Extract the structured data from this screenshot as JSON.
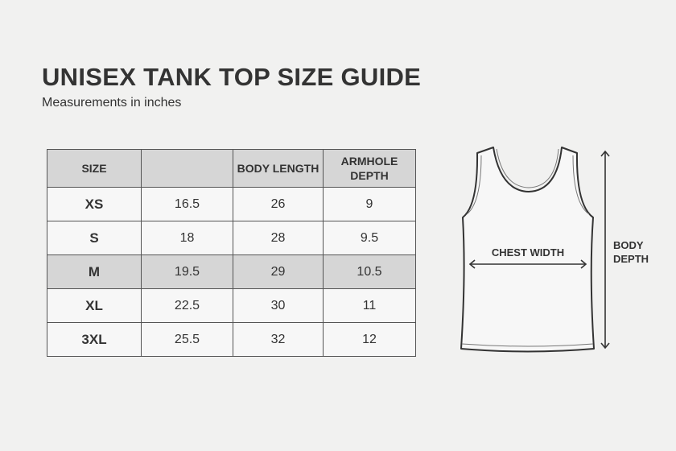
{
  "title": "UNISEX TANK TOP SIZE GUIDE",
  "subtitle": "Measurements in inches",
  "table": {
    "headers": [
      "SIZE",
      "",
      "BODY LENGTH",
      "ARMHOLE DEPTH"
    ],
    "highlighted_row": "M",
    "rows": [
      [
        "XS",
        "16.5",
        "26",
        "9"
      ],
      [
        "S",
        "18",
        "28",
        "9.5"
      ],
      [
        "M",
        "19.5",
        "29",
        "10.5"
      ],
      [
        "XL",
        "22.5",
        "30",
        "11"
      ],
      [
        "3XL",
        "25.5",
        "32",
        "12"
      ]
    ]
  },
  "diagram": {
    "chest_label": "CHEST WIDTH",
    "body_label_line1": "BODY",
    "body_label_line2": "DEPTH"
  },
  "colors": {
    "background": "#f1f1f0",
    "header_fill": "#d6d6d6",
    "ink": "#333333"
  }
}
